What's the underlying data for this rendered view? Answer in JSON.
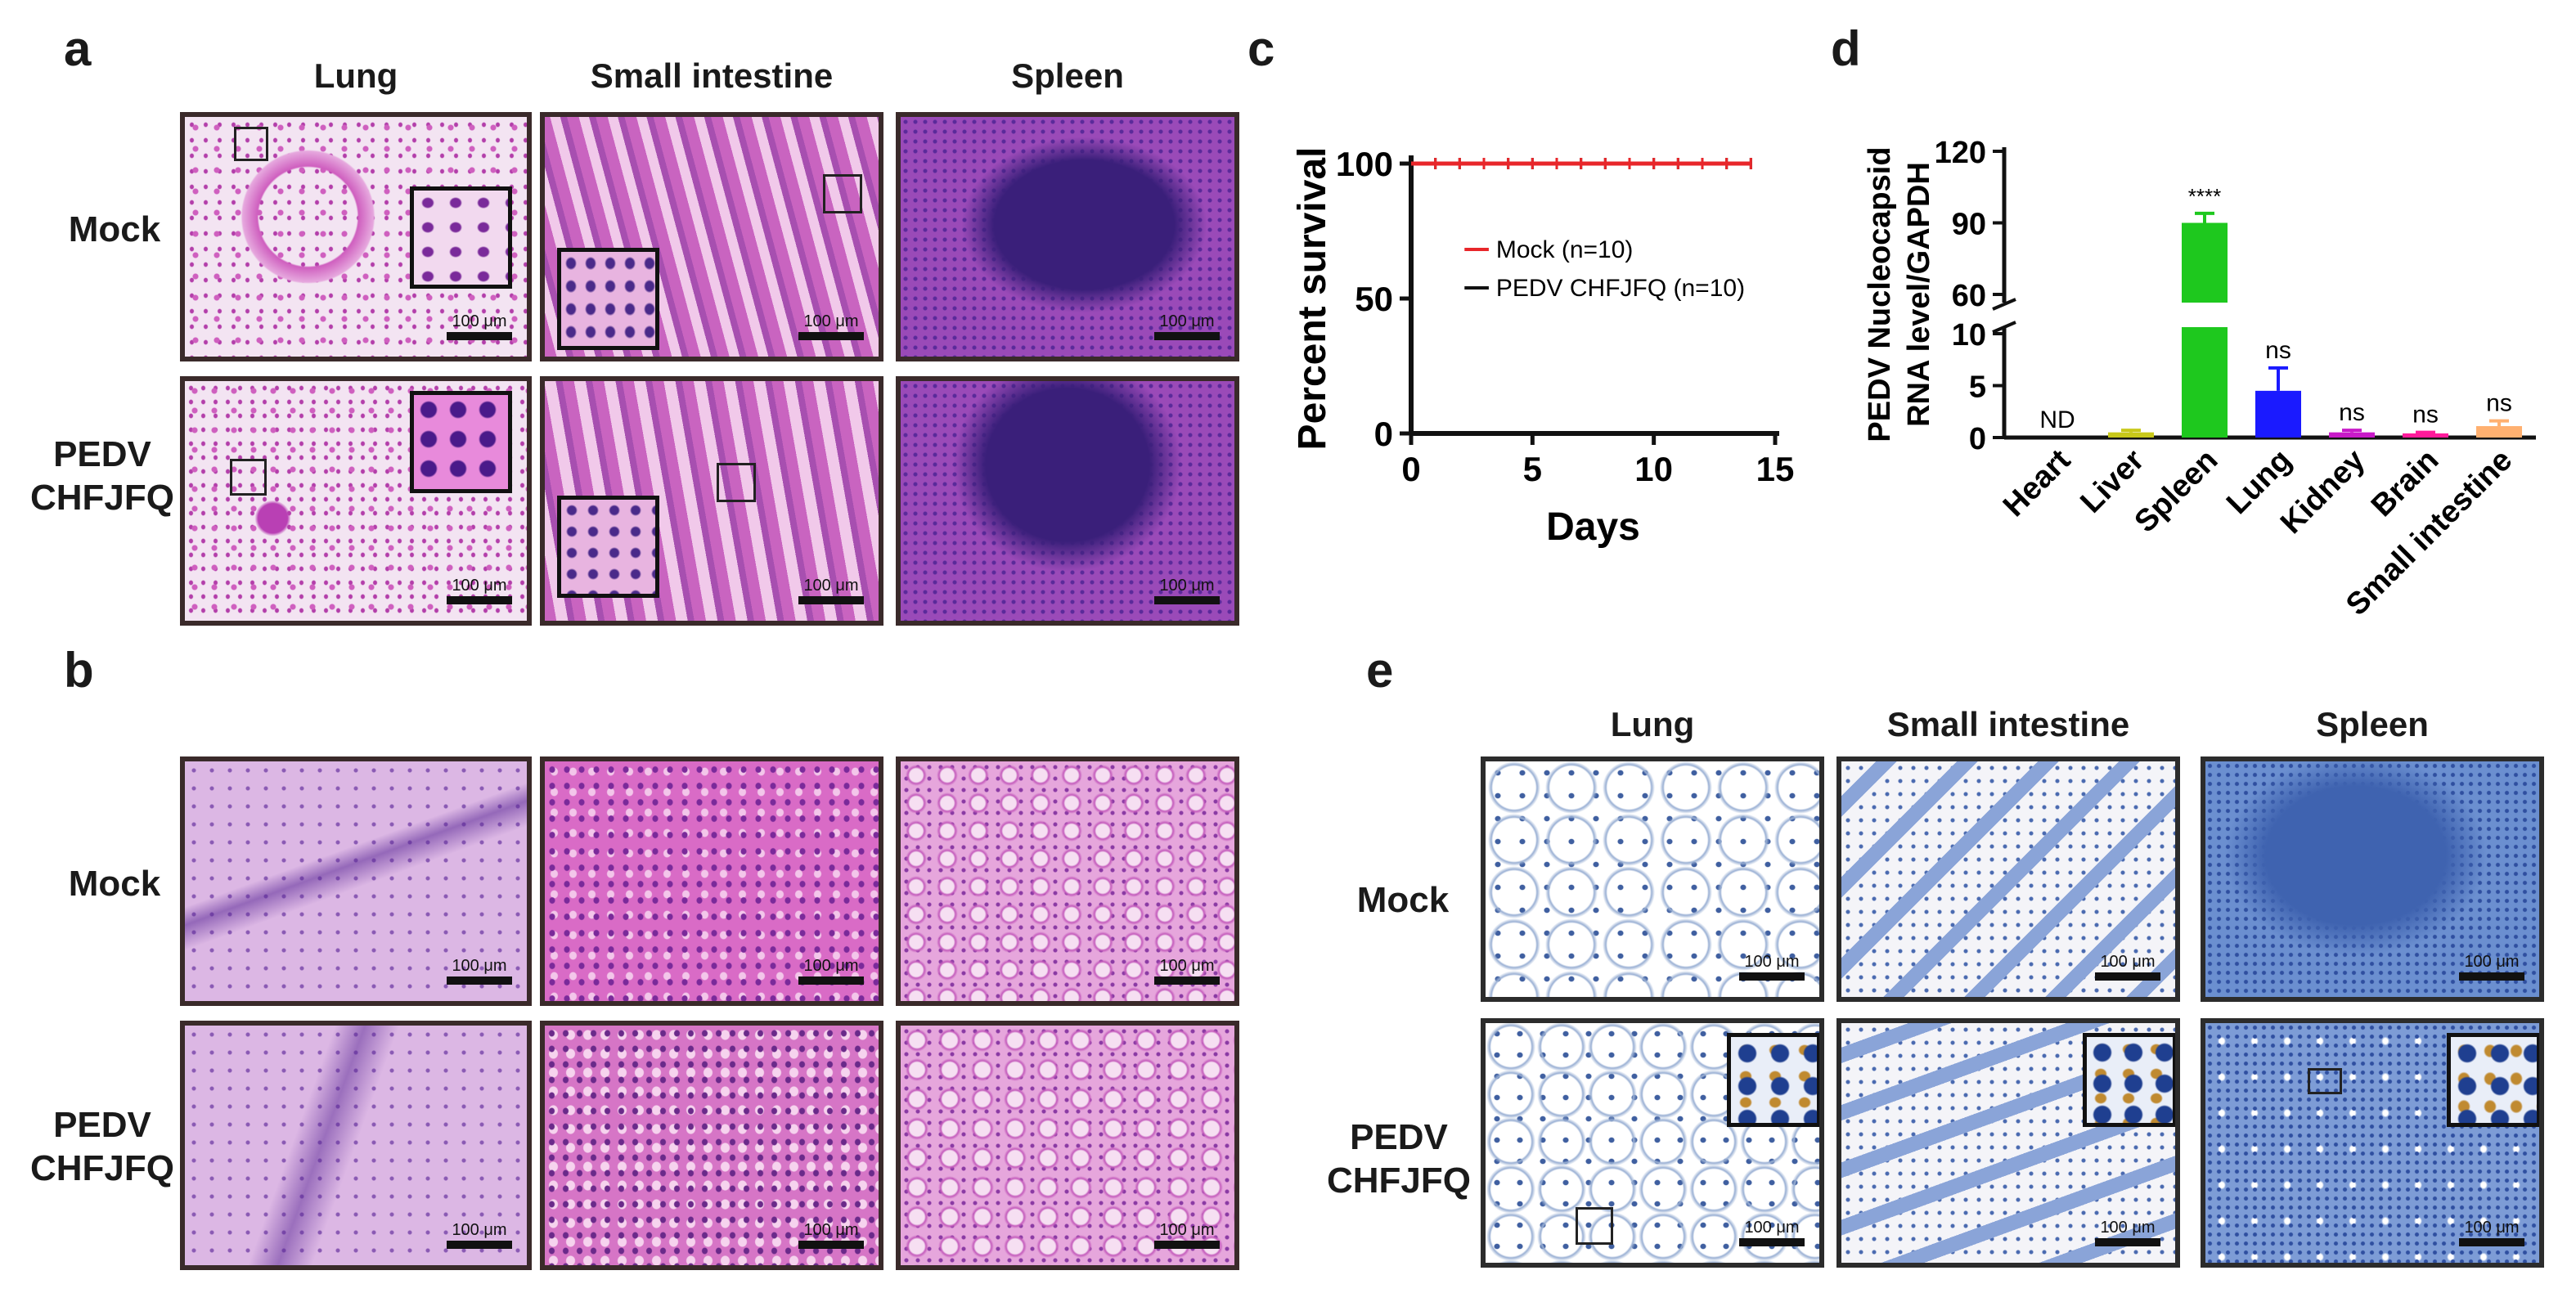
{
  "figure": {
    "panel_labels": [
      "a",
      "b",
      "c",
      "d",
      "e"
    ],
    "panel_a": {
      "columns": [
        "Lung",
        "Small intestine",
        "Spleen"
      ],
      "rows": [
        "Mock",
        "PEDV\nCHFJFQ"
      ],
      "scale_bar": "100 μm"
    },
    "panel_b": {
      "rows": [
        "Mock",
        "PEDV\nCHFJFQ"
      ],
      "scale_bar": "100 μm"
    },
    "panel_e": {
      "columns": [
        "Lung",
        "Small intestine",
        "Spleen"
      ],
      "rows": [
        "Mock",
        "PEDV\nCHFJFQ"
      ],
      "scale_bar": "100 μm"
    },
    "colors": {
      "he_pink": "#d565c6",
      "he_purple": "#5a2a9a",
      "ihc_blue": "#3f6fc0",
      "mock_line": "#e8262a",
      "pedv_line": "#111111"
    }
  },
  "chart_data": [
    {
      "type": "line",
      "panel": "c",
      "xlabel": "Days",
      "ylabel": "Percent survival",
      "xlim": [
        0,
        15
      ],
      "ylim": [
        0,
        100
      ],
      "xticks": [
        0,
        5,
        10,
        15
      ],
      "yticks": [
        0,
        50,
        100
      ],
      "legend_position": "center-right",
      "series": [
        {
          "name": "Mock (n=10)",
          "color": "#e8262a",
          "x": [
            0,
            1,
            2,
            3,
            4,
            5,
            6,
            7,
            8,
            9,
            10,
            11,
            12,
            13,
            14
          ],
          "y": [
            100,
            100,
            100,
            100,
            100,
            100,
            100,
            100,
            100,
            100,
            100,
            100,
            100,
            100,
            100
          ]
        },
        {
          "name": "PEDV CHFJFQ (n=10)",
          "color": "#111111",
          "x": [
            0,
            1,
            2,
            3,
            4,
            5,
            6,
            7,
            8,
            9,
            10,
            11,
            12,
            13,
            14
          ],
          "y": [
            100,
            100,
            100,
            100,
            100,
            100,
            100,
            100,
            100,
            100,
            100,
            100,
            100,
            100,
            100
          ]
        }
      ]
    },
    {
      "type": "bar",
      "panel": "d",
      "ylabel": "PEDV Nucleocapsid RNA level/GAPDH",
      "y_axis_break": [
        10,
        55
      ],
      "yticks_lower": [
        0,
        5,
        10
      ],
      "yticks_upper": [
        60,
        90,
        120
      ],
      "categories": [
        "Heart",
        "Liver",
        "Spleen",
        "Lung",
        "Kidney",
        "Brain",
        "Small intestine"
      ],
      "values": [
        0,
        0.5,
        90,
        4.5,
        0.5,
        0.4,
        1.1
      ],
      "errors": [
        0,
        0.2,
        4,
        2.2,
        0.2,
        0.1,
        0.5
      ],
      "colors": [
        "#ff1a1a",
        "#c8c81a",
        "#1ec81e",
        "#1a1aff",
        "#c81ac8",
        "#ff1a9a",
        "#ffb070"
      ],
      "annotations": [
        "ND",
        "",
        "****",
        "ns",
        "ns",
        "ns",
        "ns"
      ]
    }
  ]
}
